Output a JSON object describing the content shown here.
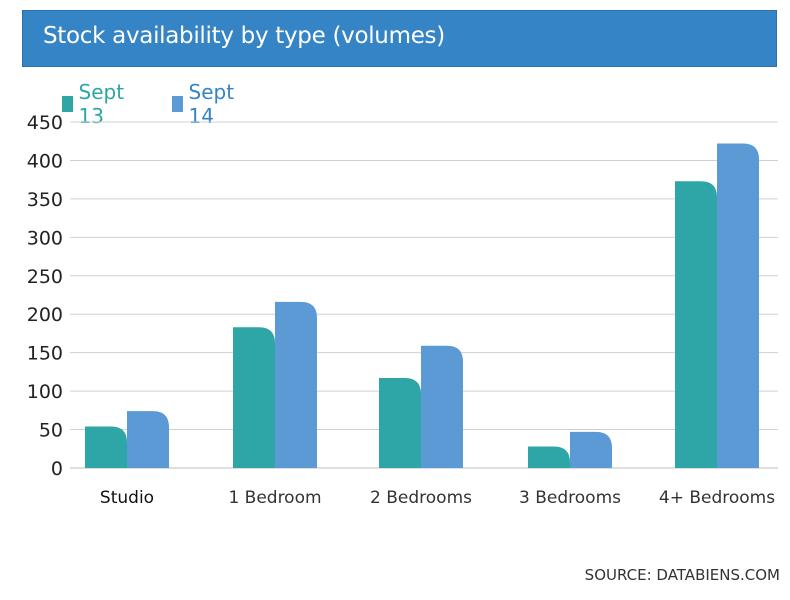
{
  "title": "Stock availability by type (volumes)",
  "source": "SOURCE: DATABIENS.COM",
  "colors": {
    "header_bg": "#3585c6",
    "series1": "#2ea5a6",
    "series2": "#5b9ad4",
    "legend1_text": "#2ea5a6",
    "legend2_text": "#3585c6",
    "grid": "#d0d0d0"
  },
  "legend": [
    {
      "label": "Sept 13"
    },
    {
      "label": "Sept 14"
    }
  ],
  "chart_data": {
    "type": "bar",
    "categories": [
      "Studio",
      "1 Bedroom",
      "2 Bedrooms",
      "3 Bedrooms",
      "4+ Bedrooms"
    ],
    "series": [
      {
        "name": "Sept 13",
        "values": [
          54,
          183,
          117,
          28,
          373
        ]
      },
      {
        "name": "Sept 14",
        "values": [
          74,
          216,
          159,
          47,
          422
        ]
      }
    ],
    "ylim": [
      0,
      450
    ],
    "yticks": [
      0,
      50,
      100,
      150,
      200,
      250,
      300,
      350,
      400,
      450
    ],
    "grid": true,
    "legend_position": "top-left"
  }
}
